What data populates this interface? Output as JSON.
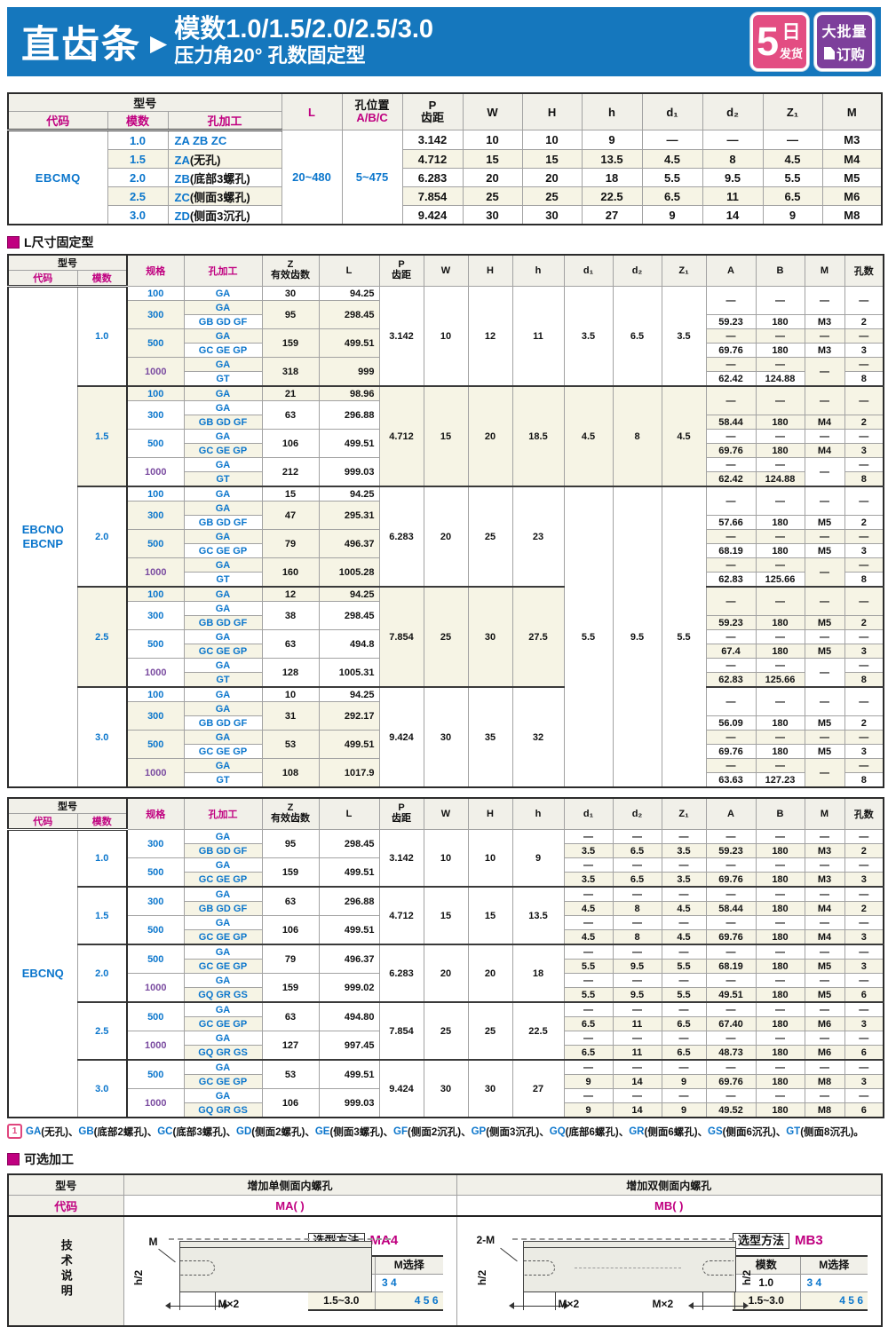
{
  "banner": {
    "title": "直齿条",
    "arrow": "▶",
    "subtitle_line1": "模数1.0/1.5/2.0/2.5/3.0",
    "subtitle_line2": "压力角20°  孔数固定型",
    "badge_delivery": {
      "number": "5",
      "unit": "日",
      "label": "发货"
    },
    "badge_bulk": {
      "line1": "大批量",
      "line2": "订购"
    },
    "colors": {
      "banner_bg": "#1577bd",
      "delivery_bg": "#e34d82",
      "bulk_bg": "#7d3f9b"
    }
  },
  "colors": {
    "accent_magenta": "#c00080",
    "link_blue": "#0b76cc",
    "spec1000_purple": "#7a4ba0",
    "row_stripe": "#f6f4e5"
  },
  "table1": {
    "headers": {
      "model_group": "型号",
      "code": "代码",
      "module": "模数",
      "hole": "孔加工",
      "length": "L",
      "hole_pos_line1": "孔位置",
      "hole_pos_line2": "A/B/C",
      "pitch_line1": "P",
      "pitch_line2": "齿距",
      "w": "W",
      "h_upper": "H",
      "h_lower": "h",
      "d1": "d₁",
      "d2": "d₂",
      "z1": "Z₁",
      "m": "M"
    },
    "code_value": "EBCMQ",
    "length_range": "20~480",
    "hole_pos_range": "5~475",
    "rows": [
      {
        "module": "1.0",
        "hole_code": "ZA  ZB  ZC",
        "hole_note": "",
        "pitch": "3.142",
        "w": "10",
        "h_upper": "10",
        "h_lower": "9",
        "d1": "—",
        "d2": "—",
        "z1": "—",
        "m": "M3"
      },
      {
        "module": "1.5",
        "hole_code": "ZA",
        "hole_note": "(无孔)",
        "pitch": "4.712",
        "w": "15",
        "h_upper": "15",
        "h_lower": "13.5",
        "d1": "4.5",
        "d2": "8",
        "z1": "4.5",
        "m": "M4"
      },
      {
        "module": "2.0",
        "hole_code": "ZB",
        "hole_note": "(底部3螺孔)",
        "pitch": "6.283",
        "w": "20",
        "h_upper": "20",
        "h_lower": "18",
        "d1": "5.5",
        "d2": "9.5",
        "z1": "5.5",
        "m": "M5"
      },
      {
        "module": "2.5",
        "hole_code": "ZC",
        "hole_note": "(侧面3螺孔)",
        "pitch": "7.854",
        "w": "25",
        "h_upper": "25",
        "h_lower": "22.5",
        "d1": "6.5",
        "d2": "11",
        "z1": "6.5",
        "m": "M6"
      },
      {
        "module": "3.0",
        "hole_code": "ZD",
        "hole_note": "(侧面3沉孔)",
        "pitch": "9.424",
        "w": "30",
        "h_upper": "30",
        "h_lower": "27",
        "d1": "9",
        "d2": "14",
        "z1": "9",
        "m": "M8"
      }
    ]
  },
  "section_l_fixed": {
    "title": "L尺寸固定型"
  },
  "rack_headers": {
    "model_group": "型号",
    "code": "代码",
    "module": "模数",
    "spec": "规格",
    "hole": "孔加工",
    "z_line1": "Z",
    "z_line2": "有效齿数",
    "length": "L",
    "pitch_line1": "P",
    "pitch_line2": "齿距",
    "w": "W",
    "h_upper": "H",
    "h_lower": "h",
    "d1": "d₁",
    "d2": "d₂",
    "z1": "Z₁",
    "a": "A",
    "b": "B",
    "m": "M",
    "holes_count": "孔数"
  },
  "table2": {
    "code_lines": [
      "EBCNO",
      "EBCNP"
    ],
    "shared_d": {
      "d1": "5.5",
      "d2": "9.5",
      "z1": "5.5"
    },
    "blocks": [
      {
        "module": "1.0",
        "pitch": "3.142",
        "w": "10",
        "h_upper": "12",
        "h_lower": "11",
        "d1": "3.5",
        "d2": "6.5",
        "z1": "3.5",
        "specs": [
          {
            "spec": "100",
            "z": "30",
            "length": "94.25",
            "holes": [
              {
                "code": "GA"
              }
            ]
          },
          {
            "spec": "300",
            "z": "95",
            "length": "298.45",
            "holes": [
              {
                "code": "GA"
              },
              {
                "code": "GB GD GF",
                "a": "59.23",
                "b": "180",
                "m": "M3",
                "count": "2"
              }
            ]
          },
          {
            "spec": "500",
            "z": "159",
            "length": "499.51",
            "holes": [
              {
                "code": "GA"
              },
              {
                "code": "GC GE GP",
                "a": "69.76",
                "b": "180",
                "m": "M3",
                "count": "3"
              }
            ]
          },
          {
            "spec": "1000",
            "z": "318",
            "length": "999",
            "holes": [
              {
                "code": "GA"
              },
              {
                "code": "GT",
                "a": "62.42",
                "b": "124.88",
                "m": "",
                "count": "8"
              }
            ]
          }
        ]
      },
      {
        "module": "1.5",
        "pitch": "4.712",
        "w": "15",
        "h_upper": "20",
        "h_lower": "18.5",
        "d1": "4.5",
        "d2": "8",
        "z1": "4.5",
        "specs": [
          {
            "spec": "100",
            "z": "21",
            "length": "98.96",
            "holes": [
              {
                "code": "GA"
              }
            ]
          },
          {
            "spec": "300",
            "z": "63",
            "length": "296.88",
            "holes": [
              {
                "code": "GA"
              },
              {
                "code": "GB GD GF",
                "a": "58.44",
                "b": "180",
                "m": "M4",
                "count": "2"
              }
            ]
          },
          {
            "spec": "500",
            "z": "106",
            "length": "499.51",
            "holes": [
              {
                "code": "GA"
              },
              {
                "code": "GC GE GP",
                "a": "69.76",
                "b": "180",
                "m": "M4",
                "count": "3"
              }
            ]
          },
          {
            "spec": "1000",
            "z": "212",
            "length": "999.03",
            "holes": [
              {
                "code": "GA"
              },
              {
                "code": "GT",
                "a": "62.42",
                "b": "124.88",
                "m": "",
                "count": "8"
              }
            ]
          }
        ]
      },
      {
        "module": "2.0",
        "pitch": "6.283",
        "w": "20",
        "h_upper": "25",
        "h_lower": "23",
        "d_group": "start",
        "specs": [
          {
            "spec": "100",
            "z": "15",
            "length": "94.25",
            "holes": [
              {
                "code": "GA"
              }
            ]
          },
          {
            "spec": "300",
            "z": "47",
            "length": "295.31",
            "holes": [
              {
                "code": "GA"
              },
              {
                "code": "GB GD GF",
                "a": "57.66",
                "b": "180",
                "m": "M5",
                "count": "2"
              }
            ]
          },
          {
            "spec": "500",
            "z": "79",
            "length": "496.37",
            "holes": [
              {
                "code": "GA"
              },
              {
                "code": "GC GE GP",
                "a": "68.19",
                "b": "180",
                "m": "M5",
                "count": "3"
              }
            ]
          },
          {
            "spec": "1000",
            "z": "160",
            "length": "1005.28",
            "holes": [
              {
                "code": "GA"
              },
              {
                "code": "GT",
                "a": "62.83",
                "b": "125.66",
                "m": "",
                "count": "8"
              }
            ]
          }
        ]
      },
      {
        "module": "2.5",
        "pitch": "7.854",
        "w": "25",
        "h_upper": "30",
        "h_lower": "27.5",
        "d_group": "covered",
        "specs": [
          {
            "spec": "100",
            "z": "12",
            "length": "94.25",
            "holes": [
              {
                "code": "GA"
              }
            ]
          },
          {
            "spec": "300",
            "z": "38",
            "length": "298.45",
            "holes": [
              {
                "code": "GA"
              },
              {
                "code": "GB GD GF",
                "a": "59.23",
                "b": "180",
                "m": "M5",
                "count": "2"
              }
            ]
          },
          {
            "spec": "500",
            "z": "63",
            "length": "494.8",
            "holes": [
              {
                "code": "GA"
              },
              {
                "code": "GC GE GP",
                "a": "67.4",
                "b": "180",
                "m": "M5",
                "count": "3"
              }
            ]
          },
          {
            "spec": "1000",
            "z": "128",
            "length": "1005.31",
            "holes": [
              {
                "code": "GA"
              },
              {
                "code": "GT",
                "a": "62.83",
                "b": "125.66",
                "m": "",
                "count": "8"
              }
            ]
          }
        ]
      },
      {
        "module": "3.0",
        "pitch": "9.424",
        "w": "30",
        "h_upper": "35",
        "h_lower": "32",
        "d_group": "covered",
        "specs": [
          {
            "spec": "100",
            "z": "10",
            "length": "94.25",
            "holes": [
              {
                "code": "GA"
              }
            ]
          },
          {
            "spec": "300",
            "z": "31",
            "length": "292.17",
            "holes": [
              {
                "code": "GA"
              },
              {
                "code": "GB GD GF",
                "a": "56.09",
                "b": "180",
                "m": "M5",
                "count": "2"
              }
            ]
          },
          {
            "spec": "500",
            "z": "53",
            "length": "499.51",
            "holes": [
              {
                "code": "GA"
              },
              {
                "code": "GC GE GP",
                "a": "69.76",
                "b": "180",
                "m": "M5",
                "count": "3"
              }
            ]
          },
          {
            "spec": "1000",
            "z": "108",
            "length": "1017.9",
            "holes": [
              {
                "code": "GA"
              },
              {
                "code": "GT",
                "a": "63.63",
                "b": "127.23",
                "m": "",
                "count": "8"
              }
            ]
          }
        ]
      }
    ]
  },
  "table3": {
    "code_lines": [
      "EBCNQ"
    ],
    "blocks": [
      {
        "module": "1.0",
        "pitch": "3.142",
        "w": "10",
        "h_upper": "10",
        "h_lower": "9",
        "specs": [
          {
            "spec": "300",
            "z": "95",
            "length": "298.45",
            "holes": [
              {
                "code": "GA"
              },
              {
                "code": "GB GD GF",
                "d1": "3.5",
                "d2": "6.5",
                "z1": "3.5",
                "a": "59.23",
                "b": "180",
                "m": "M3",
                "count": "2"
              }
            ]
          },
          {
            "spec": "500",
            "z": "159",
            "length": "499.51",
            "holes": [
              {
                "code": "GA"
              },
              {
                "code": "GC GE GP",
                "d1": "3.5",
                "d2": "6.5",
                "z1": "3.5",
                "a": "69.76",
                "b": "180",
                "m": "M3",
                "count": "3"
              }
            ]
          }
        ]
      },
      {
        "module": "1.5",
        "pitch": "4.712",
        "w": "15",
        "h_upper": "15",
        "h_lower": "13.5",
        "specs": [
          {
            "spec": "300",
            "z": "63",
            "length": "296.88",
            "holes": [
              {
                "code": "GA"
              },
              {
                "code": "GB GD GF",
                "d1": "4.5",
                "d2": "8",
                "z1": "4.5",
                "a": "58.44",
                "b": "180",
                "m": "M4",
                "count": "2"
              }
            ]
          },
          {
            "spec": "500",
            "z": "106",
            "length": "499.51",
            "holes": [
              {
                "code": "GA"
              },
              {
                "code": "GC GE GP",
                "d1": "4.5",
                "d2": "8",
                "z1": "4.5",
                "a": "69.76",
                "b": "180",
                "m": "M4",
                "count": "3"
              }
            ]
          }
        ]
      },
      {
        "module": "2.0",
        "pitch": "6.283",
        "w": "20",
        "h_upper": "20",
        "h_lower": "18",
        "specs": [
          {
            "spec": "500",
            "z": "79",
            "length": "496.37",
            "holes": [
              {
                "code": "GA"
              },
              {
                "code": "GC GE GP",
                "d1": "5.5",
                "d2": "9.5",
                "z1": "5.5",
                "a": "68.19",
                "b": "180",
                "m": "M5",
                "count": "3"
              }
            ]
          },
          {
            "spec": "1000",
            "z": "159",
            "length": "999.02",
            "holes": [
              {
                "code": "GA"
              },
              {
                "code": "GQ GR GS",
                "d1": "5.5",
                "d2": "9.5",
                "z1": "5.5",
                "a": "49.51",
                "b": "180",
                "m": "M5",
                "count": "6"
              }
            ]
          }
        ]
      },
      {
        "module": "2.5",
        "pitch": "7.854",
        "w": "25",
        "h_upper": "25",
        "h_lower": "22.5",
        "specs": [
          {
            "spec": "500",
            "z": "63",
            "length": "494.80",
            "holes": [
              {
                "code": "GA"
              },
              {
                "code": "GC GE GP",
                "d1": "6.5",
                "d2": "11",
                "z1": "6.5",
                "a": "67.40",
                "b": "180",
                "m": "M6",
                "count": "3"
              }
            ]
          },
          {
            "spec": "1000",
            "z": "127",
            "length": "997.45",
            "holes": [
              {
                "code": "GA"
              },
              {
                "code": "GQ GR GS",
                "d1": "6.5",
                "d2": "11",
                "z1": "6.5",
                "a": "48.73",
                "b": "180",
                "m": "M6",
                "count": "6"
              }
            ]
          }
        ]
      },
      {
        "module": "3.0",
        "pitch": "9.424",
        "w": "30",
        "h_upper": "30",
        "h_lower": "27",
        "specs": [
          {
            "spec": "500",
            "z": "53",
            "length": "499.51",
            "holes": [
              {
                "code": "GA"
              },
              {
                "code": "GC GE GP",
                "d1": "9",
                "d2": "14",
                "z1": "9",
                "a": "69.76",
                "b": "180",
                "m": "M8",
                "count": "3"
              }
            ]
          },
          {
            "spec": "1000",
            "z": "106",
            "length": "999.03",
            "holes": [
              {
                "code": "GA"
              },
              {
                "code": "GQ GR GS",
                "d1": "9",
                "d2": "14",
                "z1": "9",
                "a": "49.52",
                "b": "180",
                "m": "M8",
                "count": "6"
              }
            ]
          }
        ]
      }
    ]
  },
  "footnote": {
    "marker": "1",
    "separator": "、",
    "terminator": "。",
    "items": [
      {
        "code": "GA",
        "desc": "(无孔)"
      },
      {
        "code": "GB",
        "desc": "(底部2螺孔)"
      },
      {
        "code": "GC",
        "desc": "(底部3螺孔)"
      },
      {
        "code": "GD",
        "desc": "(侧面2螺孔)"
      },
      {
        "code": "GE",
        "desc": "(侧面3螺孔)"
      },
      {
        "code": "GF",
        "desc": "(侧面2沉孔)"
      },
      {
        "code": "GP",
        "desc": "(侧面3沉孔)"
      },
      {
        "code": "GQ",
        "desc": "(底部6螺孔)"
      },
      {
        "code": "GR",
        "desc": "(侧面6螺孔)"
      },
      {
        "code": "GS",
        "desc": "(侧面6沉孔)"
      },
      {
        "code": "GT",
        "desc": "(侧面8沉孔)"
      }
    ]
  },
  "section_optional": {
    "title": "可选加工"
  },
  "optional_table": {
    "headers": {
      "model": "型号",
      "single": "增加单侧面内螺孔",
      "double": "增加双侧面内螺孔",
      "code": "代码",
      "tech_label": "技术说明"
    },
    "codes": {
      "single": "MA( )",
      "double": "MB( )"
    },
    "diagram_single": {
      "hole_label": "M",
      "height_label": "h/2",
      "dim_label": "M×2"
    },
    "diagram_double": {
      "hole_label": "2-M",
      "height_label_left": "h/2",
      "height_label_right": "h/2",
      "dim_label1": "M×2",
      "dim_label2": "M×2"
    },
    "selection": {
      "box_label": "选型方法",
      "single_code": "MA4",
      "double_code": "MB3",
      "table": {
        "col1": "模数",
        "col2": "M选择",
        "rows": [
          {
            "module": "1.0",
            "m_options": "3 4"
          },
          {
            "module": "1.5~3.0",
            "m_options": "4 5 6"
          }
        ]
      }
    }
  }
}
